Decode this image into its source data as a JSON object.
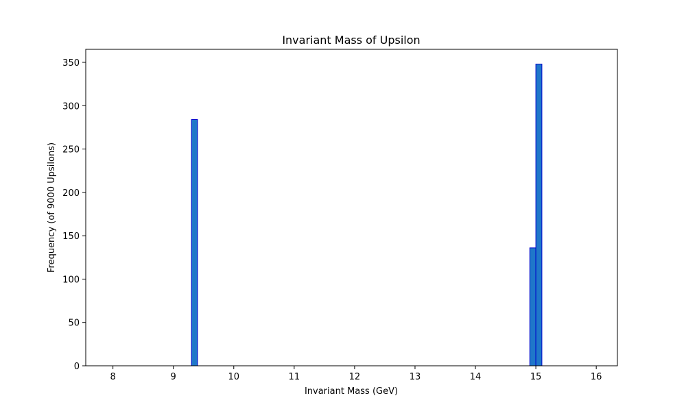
{
  "chart_data": {
    "type": "bar",
    "title": "Invariant Mass of Upsilon",
    "xlabel": "Invariant Mass (GeV)",
    "ylabel": "Frequency (of 9000 Upsilons)",
    "xlim": [
      7.55,
      16.35
    ],
    "ylim": [
      0,
      365
    ],
    "xticks": [
      8,
      9,
      10,
      11,
      12,
      13,
      14,
      15,
      16
    ],
    "yticks": [
      0,
      50,
      100,
      150,
      200,
      250,
      300,
      350
    ],
    "bin_start": 8,
    "bin_end": 16,
    "bin_width": 0.1,
    "bars": [
      {
        "x_start": 9.3,
        "x_end": 9.4,
        "value": 284
      },
      {
        "x_start": 14.9,
        "x_end": 15.0,
        "value": 136
      },
      {
        "x_start": 15.0,
        "x_end": 15.1,
        "value": 348
      }
    ],
    "bar_fill": "#1f77c9",
    "bar_edge": "#0000cc",
    "grid": false
  }
}
